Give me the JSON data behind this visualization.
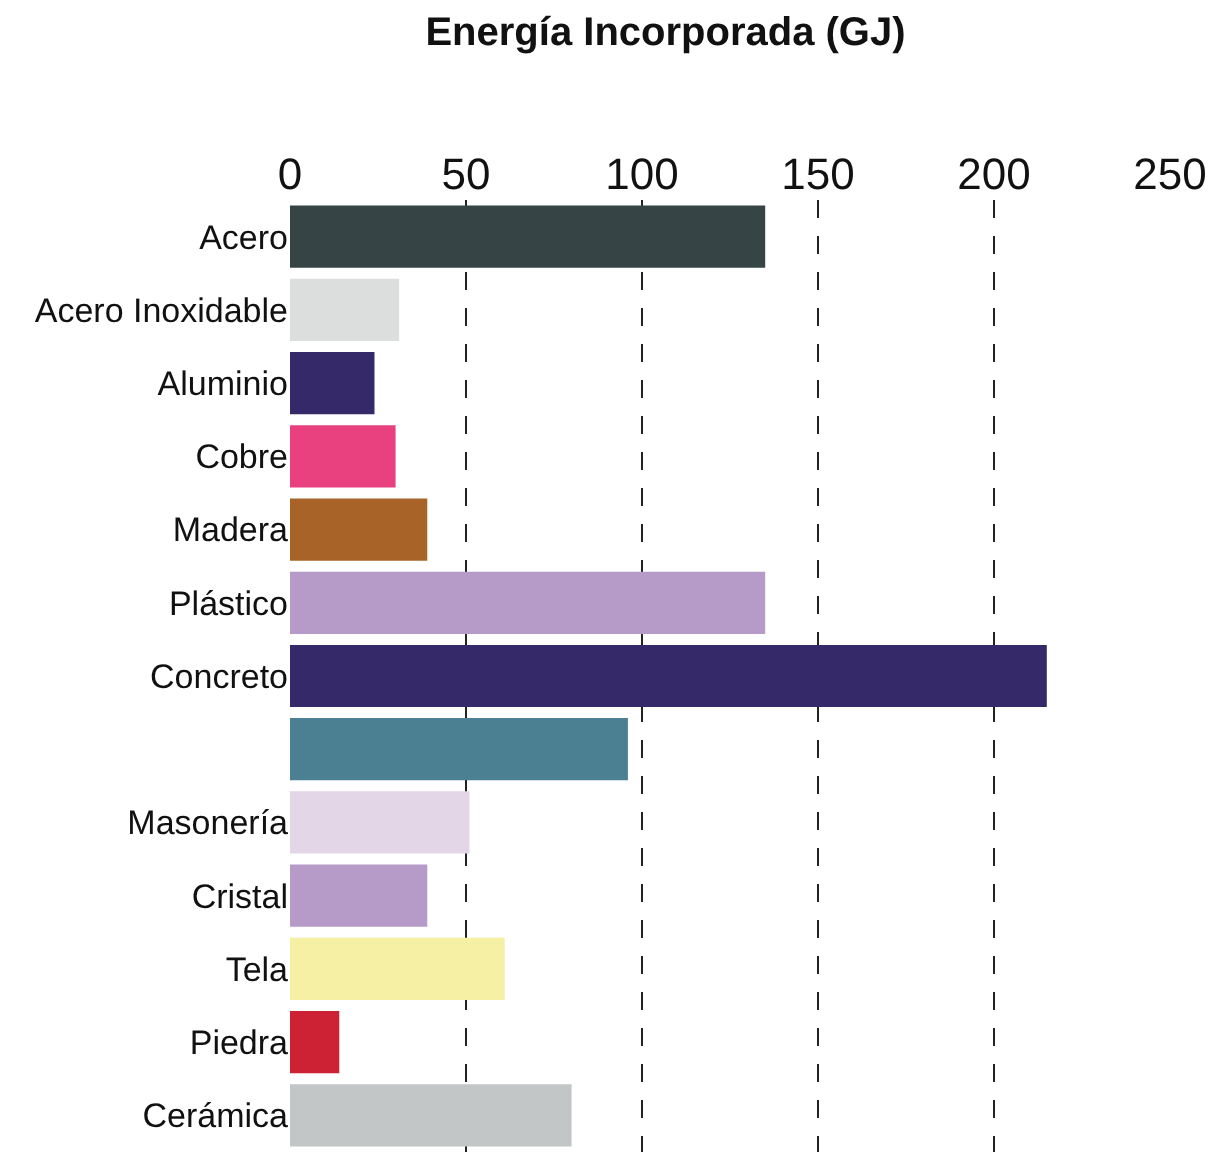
{
  "chart_data": {
    "type": "bar",
    "orientation": "horizontal",
    "title": "Energía Incorporada (GJ)",
    "categories": [
      "Acero",
      "Acero Inoxidable",
      "Aluminio",
      "Cobre",
      "Madera",
      "Plástico",
      "Concreto",
      null,
      "Masonería",
      "Cristal",
      "Tela",
      "Piedra",
      "Cerámica"
    ],
    "values": [
      135,
      31,
      24,
      30,
      39,
      135,
      215,
      96,
      51,
      39,
      61,
      14,
      80
    ],
    "colors": [
      "#364446",
      "#dcdedd",
      "#35296a",
      "#e94080",
      "#a86428",
      "#b69ac8",
      "#35296a",
      "#4b8093",
      "#e3d6e6",
      "#b69ac8",
      "#f5f0a3",
      "#cc2234",
      "#c3c6c7"
    ],
    "xlim": [
      0,
      250
    ],
    "xticks": [
      0,
      50,
      100,
      150,
      200,
      250
    ],
    "grid": "x",
    "legend": false
  }
}
